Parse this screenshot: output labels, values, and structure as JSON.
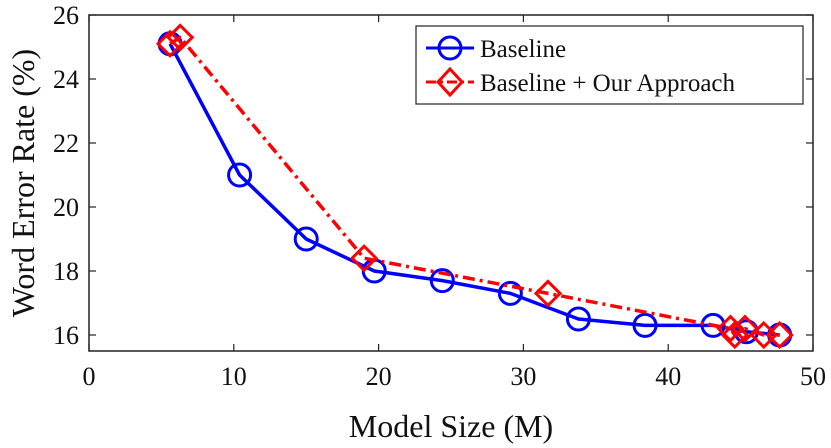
{
  "chart_data": {
    "type": "line",
    "title": "",
    "xlabel": "Model Size (M)",
    "ylabel": "Word Error Rate (%)",
    "xlim": [
      0,
      50
    ],
    "ylim": [
      15.5,
      26
    ],
    "xticks": [
      0,
      10,
      20,
      30,
      40,
      50
    ],
    "yticks": [
      16,
      18,
      20,
      22,
      24,
      26
    ],
    "grid": false,
    "legend_position": "top-right",
    "series": [
      {
        "name": "Baseline",
        "color": "#0000ff",
        "line_style": "solid",
        "marker": "circle",
        "x": [
          5.6,
          10.4,
          15.0,
          19.7,
          24.4,
          29.1,
          33.8,
          38.4,
          43.1,
          45.4,
          47.7
        ],
        "y": [
          25.1,
          21.0,
          19.0,
          18.0,
          17.7,
          17.3,
          16.5,
          16.3,
          16.3,
          16.1,
          16.0
        ]
      },
      {
        "name": "Baseline + Our Approach",
        "color": "#ff0000",
        "line_style": "dash-dot",
        "marker": "diamond",
        "x": [
          5.6,
          6.3,
          19.0,
          31.7,
          44.3,
          44.6,
          45.3,
          46.6,
          47.7
        ],
        "y": [
          25.1,
          25.3,
          18.4,
          17.3,
          16.2,
          16.0,
          16.2,
          16.0,
          16.0
        ]
      }
    ]
  }
}
